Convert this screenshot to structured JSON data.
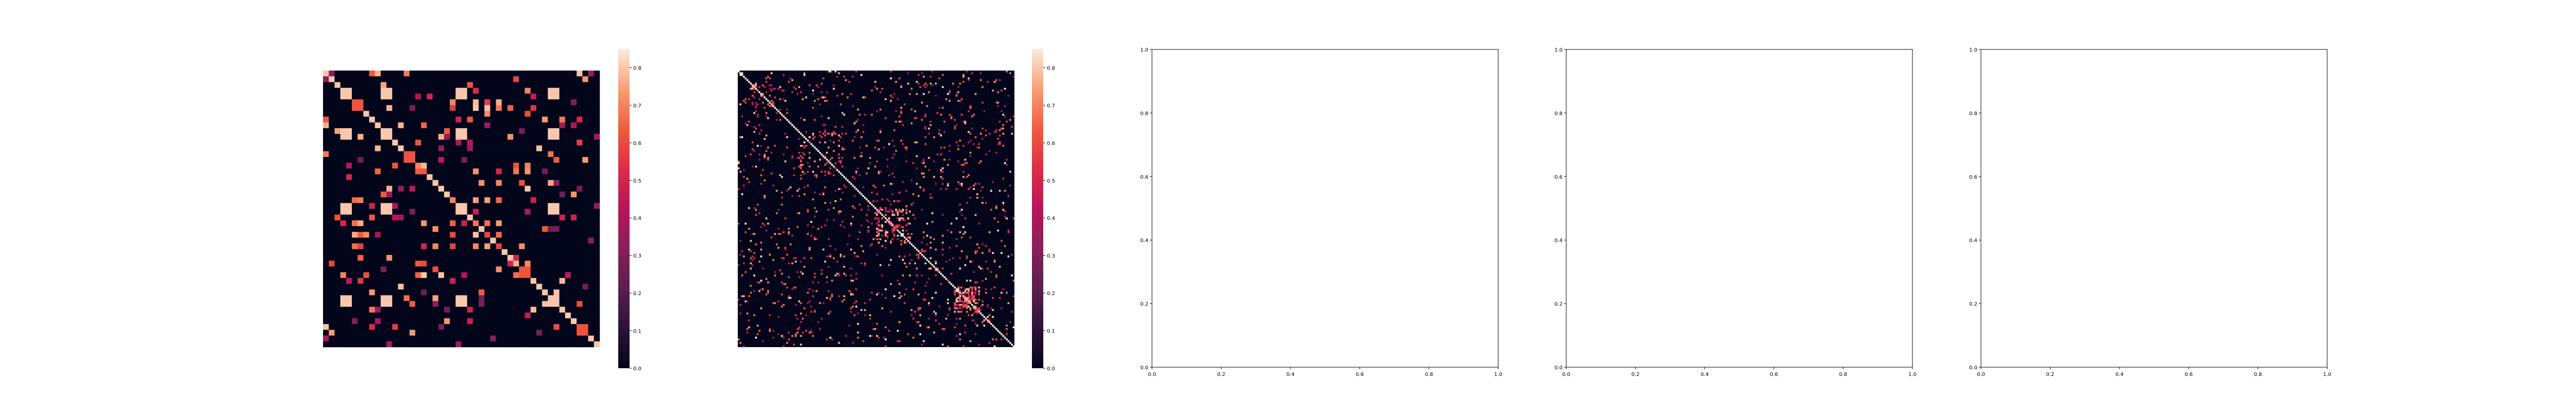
{
  "chart_data": [
    {
      "type": "heatmap",
      "title": "",
      "xlabel": "",
      "ylabel": "",
      "grid": false,
      "show_axes": false,
      "matrix_size": 48,
      "colormap": "rocket",
      "colorbar": {
        "range": [
          0,
          0.85
        ],
        "ticks": [
          "0.0",
          "0.1",
          "0.2",
          "0.3",
          "0.4",
          "0.5",
          "0.6",
          "0.7",
          "0.8"
        ]
      },
      "pattern": "block-sparse correlation matrix: strong diagonal, square blocks of ~0.8 at rows/cols 3-4, 10-11, 23-24, 39-40 and scattered 0.3-0.6 cells"
    },
    {
      "type": "heatmap",
      "title": "",
      "xlabel": "",
      "ylabel": "",
      "grid": false,
      "show_axes": false,
      "matrix_size": 160,
      "colormap": "rocket",
      "colorbar": {
        "range": [
          0,
          0.85
        ],
        "ticks": [
          "0.0",
          "0.1",
          "0.2",
          "0.3",
          "0.4",
          "0.5",
          "0.6",
          "0.7",
          "0.8"
        ]
      },
      "pattern": "sparse matrix with bright diagonal, dense clusters around index 80-100 and 125-140, scattered 0.4-0.8 cells"
    },
    {
      "type": "scatter",
      "title": "",
      "xlabel": "",
      "ylabel": "",
      "xlim": [
        0,
        1
      ],
      "ylim": [
        0,
        1
      ],
      "x_ticks": [
        "0.0",
        "0.2",
        "0.4",
        "0.6",
        "0.8",
        "1.0"
      ],
      "y_ticks": [
        "0.0",
        "0.2",
        "0.4",
        "0.6",
        "0.8",
        "1.0"
      ],
      "series": []
    },
    {
      "type": "scatter",
      "title": "",
      "xlabel": "",
      "ylabel": "",
      "xlim": [
        0,
        1
      ],
      "ylim": [
        0,
        1
      ],
      "x_ticks": [
        "0.0",
        "0.2",
        "0.4",
        "0.6",
        "0.8",
        "1.0"
      ],
      "y_ticks": [
        "0.0",
        "0.2",
        "0.4",
        "0.6",
        "0.8",
        "1.0"
      ],
      "series": []
    },
    {
      "type": "scatter",
      "title": "",
      "xlabel": "",
      "ylabel": "",
      "xlim": [
        0,
        1
      ],
      "ylim": [
        0,
        1
      ],
      "x_ticks": [
        "0.0",
        "0.2",
        "0.4",
        "0.6",
        "0.8",
        "1.0"
      ],
      "y_ticks": [
        "0.0",
        "0.2",
        "0.4",
        "0.6",
        "0.8",
        "1.0"
      ],
      "series": []
    }
  ]
}
